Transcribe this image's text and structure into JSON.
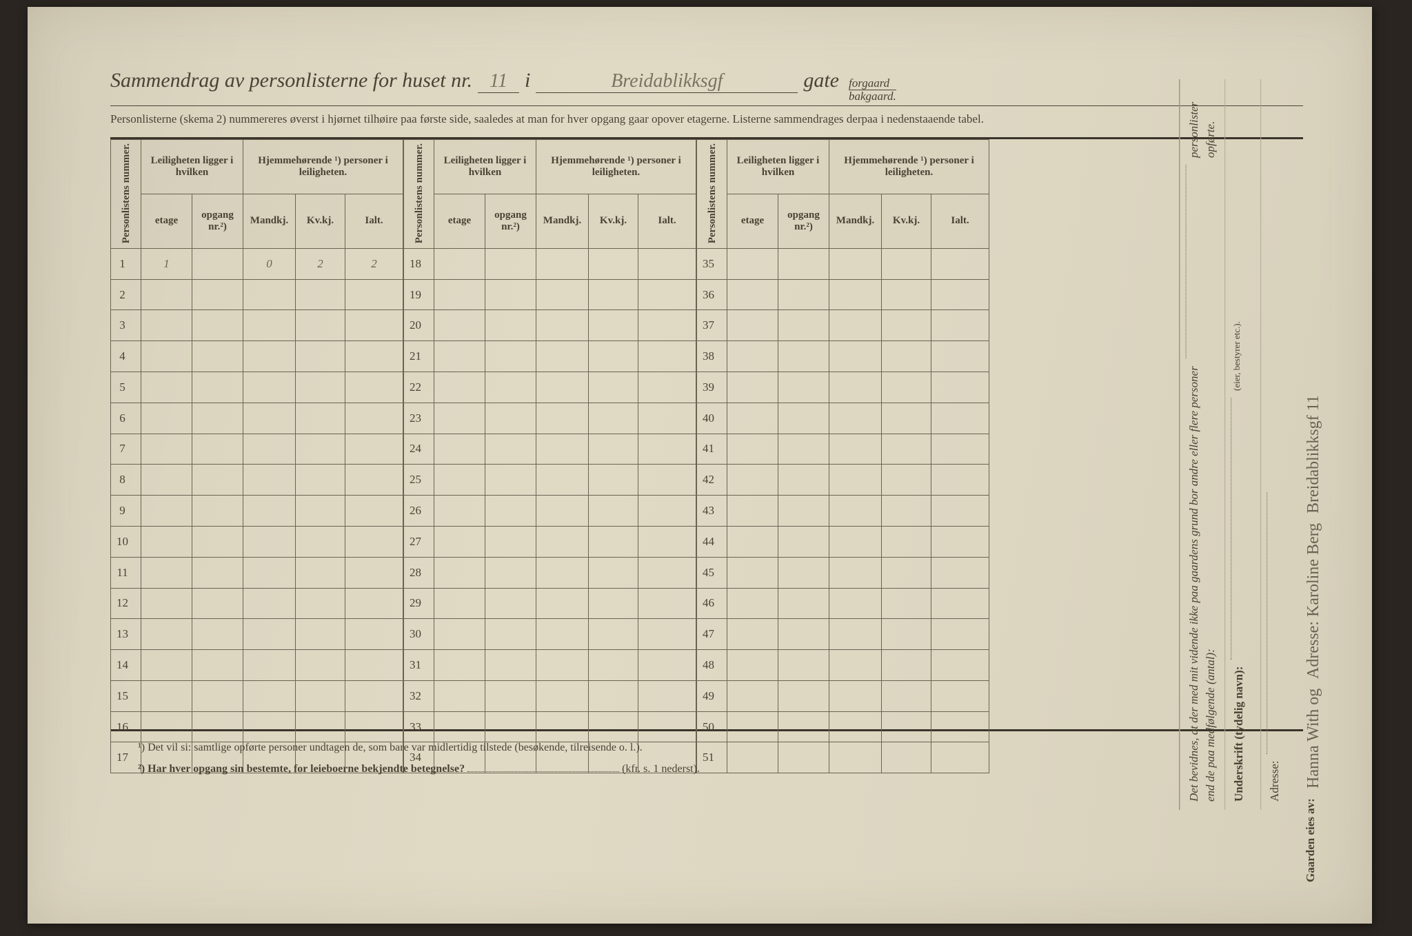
{
  "header": {
    "title_prefix": "Sammendrag av personlisterne for huset nr.",
    "house_number": "11",
    "i": "i",
    "street_handwritten": "Breidablikksgf",
    "gate_label": "gate",
    "gate_options": {
      "top": "forgaard",
      "bottom": "bakgaard."
    },
    "subtitle": "Personlisterne (skema 2) nummereres øverst i hjørnet tilhøire paa første side, saaledes at man for hver opgang gaar opover etagerne.  Listerne sammendrages derpaa i nedenstaaende tabel."
  },
  "column_headers": {
    "personlistens_nummer": "Personlistens nummer.",
    "leiligheten_group": "Leiligheten ligger i hvilken",
    "etage": "etage",
    "opgang": "opgang nr.²)",
    "hjemme_group": "Hjemmehørende ¹) personer i leiligheten.",
    "mandkj": "Mandkj.",
    "kvkj": "Kv.kj.",
    "ialt": "Ialt."
  },
  "blocks": [
    {
      "start": 1,
      "end": 17
    },
    {
      "start": 18,
      "end": 34
    },
    {
      "start": 35,
      "end": 51
    }
  ],
  "entries": {
    "1": {
      "etage": "1",
      "opgang": "",
      "mandkj": "0",
      "kvkj": "2",
      "ialt": "2"
    }
  },
  "footnotes": {
    "f1": "¹)  Det vil si: samtlige opførte personer undtagen de, som bare var midlertidig tilstede (besøkende, tilreisende o. l.).",
    "f2_a": "²)  Har hver opgang sin bestemte, for leieboerne bekjendte betegnelse?",
    "f2_b": "(kfr. s. 1 nederst)."
  },
  "side": {
    "attestation": "Det bevidnes, at der med mit vidende ikke paa gaardens grund bor andre eller flere personer end de paa medfølgende (antal):",
    "attestation_tail": "personlister opførte.",
    "underskrift_label": "Underskrift (tydelig navn):",
    "eier_bestyrer": "(eier, bestyrer etc.).",
    "adresse_label": "Adresse:",
    "gaarden_eies_av": "Gaarden eies av:",
    "owner_hand_1": "Hanna With og",
    "owner_hand_2": "Adresse: Karoline Berg",
    "owner_hand_3": "Breidablikksgf 11"
  },
  "colors": {
    "text": "#4a4335",
    "handwriting": "#6b6450",
    "border_heavy": "#3a352a",
    "border": "#6a6352"
  }
}
